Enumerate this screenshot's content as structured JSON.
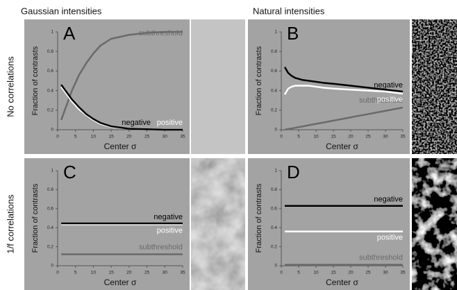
{
  "figure": {
    "columns": [
      "Gaussian intensities",
      "Natural intensities"
    ],
    "rows": [
      "No correlations",
      "1/f correlations"
    ]
  },
  "chart_data": [
    {
      "type": "line",
      "panel": "A",
      "xlabel": "Center σ",
      "ylabel": "Fraction of contrasts",
      "x": [
        1,
        2,
        3,
        4,
        5,
        6,
        8,
        10,
        12,
        15,
        20,
        25,
        30,
        35
      ],
      "xlim": [
        0,
        35
      ],
      "xticks": [
        0,
        5,
        10,
        15,
        20,
        25,
        30,
        35
      ],
      "ylim": [
        0,
        1
      ],
      "yticks": [
        0,
        0.2,
        0.4,
        0.6,
        0.8,
        1
      ],
      "series": [
        {
          "name": "subthreshold",
          "color": "#6a6a6a",
          "values": [
            0.1,
            0.2,
            0.3,
            0.4,
            0.48,
            0.56,
            0.68,
            0.78,
            0.86,
            0.93,
            0.97,
            0.99,
            1,
            1
          ]
        },
        {
          "name": "positive",
          "color": "#ffffff",
          "values": [
            0.44,
            0.39,
            0.34,
            0.29,
            0.25,
            0.21,
            0.15,
            0.1,
            0.06,
            0.03,
            0.01,
            0.005,
            0,
            0
          ]
        },
        {
          "name": "negative",
          "color": "#000000",
          "values": [
            0.46,
            0.41,
            0.36,
            0.31,
            0.27,
            0.23,
            0.16,
            0.11,
            0.07,
            0.035,
            0.01,
            0.005,
            0,
            0
          ]
        }
      ]
    },
    {
      "type": "line",
      "panel": "B",
      "xlabel": "Center σ",
      "ylabel": "Fraction of contrasts",
      "x": [
        1,
        2,
        3,
        4,
        5,
        6,
        8,
        10,
        12,
        15,
        20,
        25,
        30,
        35
      ],
      "xlim": [
        0,
        35
      ],
      "xticks": [
        0,
        5,
        10,
        15,
        20,
        25,
        30,
        35
      ],
      "ylim": [
        0,
        1
      ],
      "yticks": [
        0,
        0.2,
        0.4,
        0.6,
        0.8,
        1
      ],
      "series": [
        {
          "name": "subthreshold",
          "color": "#6a6a6a",
          "values": [
            0,
            0.007,
            0.013,
            0.02,
            0.027,
            0.033,
            0.047,
            0.06,
            0.073,
            0.093,
            0.127,
            0.16,
            0.193,
            0.227
          ]
        },
        {
          "name": "positive",
          "color": "#ffffff",
          "values": [
            0.36,
            0.42,
            0.44,
            0.45,
            0.45,
            0.45,
            0.45,
            0.44,
            0.43,
            0.42,
            0.41,
            0.4,
            0.39,
            0.37
          ]
        },
        {
          "name": "negative",
          "color": "#000000",
          "values": [
            0.64,
            0.58,
            0.55,
            0.53,
            0.52,
            0.51,
            0.5,
            0.49,
            0.48,
            0.47,
            0.45,
            0.43,
            0.41,
            0.39
          ]
        }
      ]
    },
    {
      "type": "line",
      "panel": "C",
      "xlabel": "Center σ",
      "ylabel": "Fraction of contrasts",
      "x": [
        1,
        35
      ],
      "xlim": [
        0,
        35
      ],
      "xticks": [
        0,
        5,
        10,
        15,
        20,
        25,
        30,
        35
      ],
      "ylim": [
        0,
        1
      ],
      "yticks": [
        0,
        0.2,
        0.4,
        0.6,
        0.8,
        1
      ],
      "series": [
        {
          "name": "subthreshold",
          "color": "#6a6a6a",
          "values": [
            0.12,
            0.12
          ]
        },
        {
          "name": "positive",
          "color": "#ffffff",
          "values": [
            0.435,
            0.435
          ]
        },
        {
          "name": "negative",
          "color": "#000000",
          "values": [
            0.445,
            0.445
          ]
        }
      ]
    },
    {
      "type": "line",
      "panel": "D",
      "xlabel": "Center σ",
      "ylabel": "Fraction of contrasts",
      "x": [
        1,
        35
      ],
      "xlim": [
        0,
        35
      ],
      "xticks": [
        0,
        5,
        10,
        15,
        20,
        25,
        30,
        35
      ],
      "ylim": [
        0,
        1
      ],
      "yticks": [
        0,
        0.2,
        0.4,
        0.6,
        0.8,
        1
      ],
      "series": [
        {
          "name": "subthreshold",
          "color": "#6a6a6a",
          "values": [
            0.01,
            0.01
          ]
        },
        {
          "name": "positive",
          "color": "#ffffff",
          "values": [
            0.36,
            0.36
          ]
        },
        {
          "name": "negative",
          "color": "#000000",
          "values": [
            0.63,
            0.63
          ]
        }
      ]
    }
  ]
}
